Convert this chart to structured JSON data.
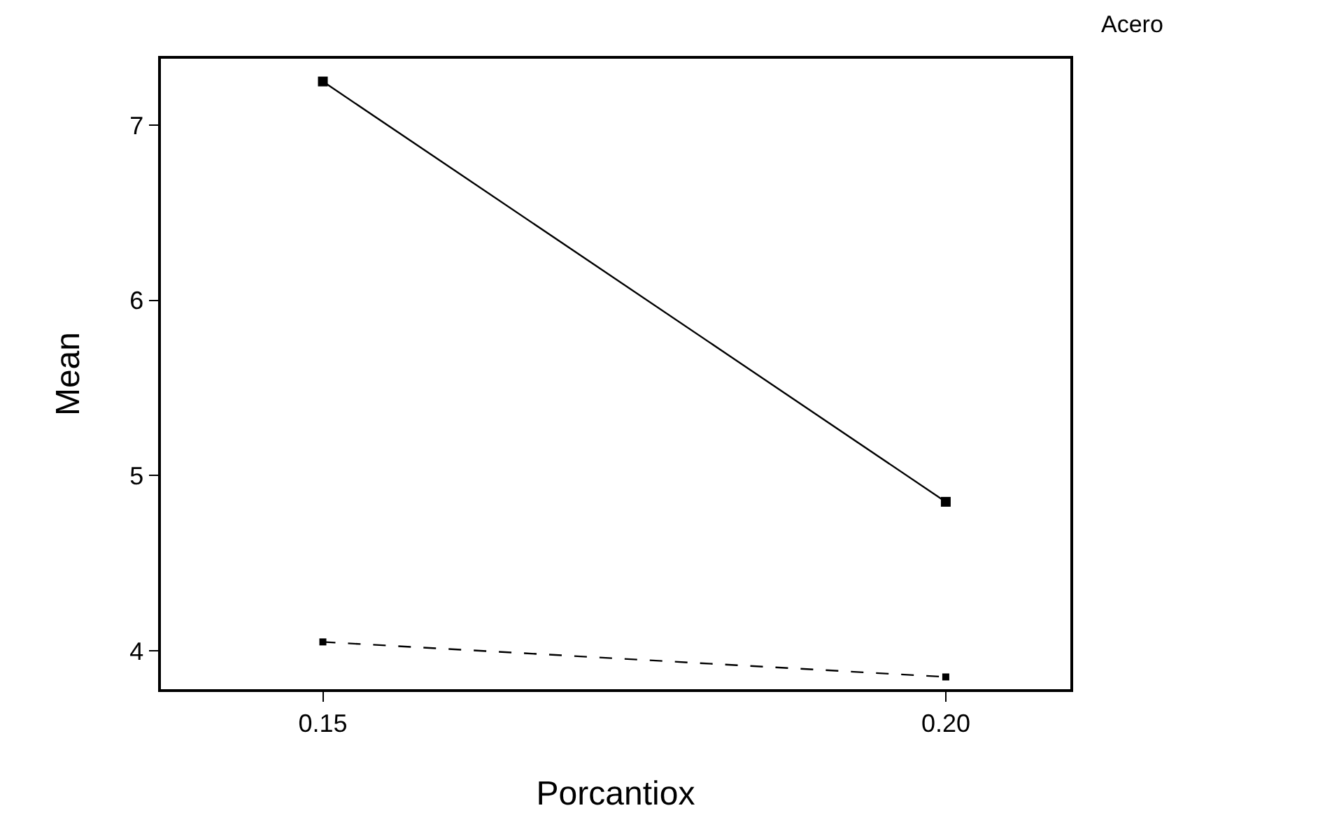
{
  "chart_data": {
    "type": "line",
    "xlabel": "Porcantiox",
    "ylabel": "Mean",
    "legend_title": "Acero",
    "marker": "square",
    "grid": false,
    "x": [
      0.15,
      0.2
    ],
    "series": [
      {
        "color": "#000000",
        "values": [
          7.25,
          4.85
        ],
        "line_style": "solid"
      },
      {
        "color": "#000000",
        "values": [
          4.05,
          3.85
        ],
        "line_style": "dashed"
      }
    ],
    "xlim": [
      0.137,
      0.21
    ],
    "xticks": [
      {
        "value": 0.15,
        "label": "0.15"
      },
      {
        "value": 0.2,
        "label": "0.20"
      }
    ],
    "ylim": [
      3.78,
      7.38
    ],
    "yticks": [
      4,
      5,
      6,
      7
    ]
  }
}
